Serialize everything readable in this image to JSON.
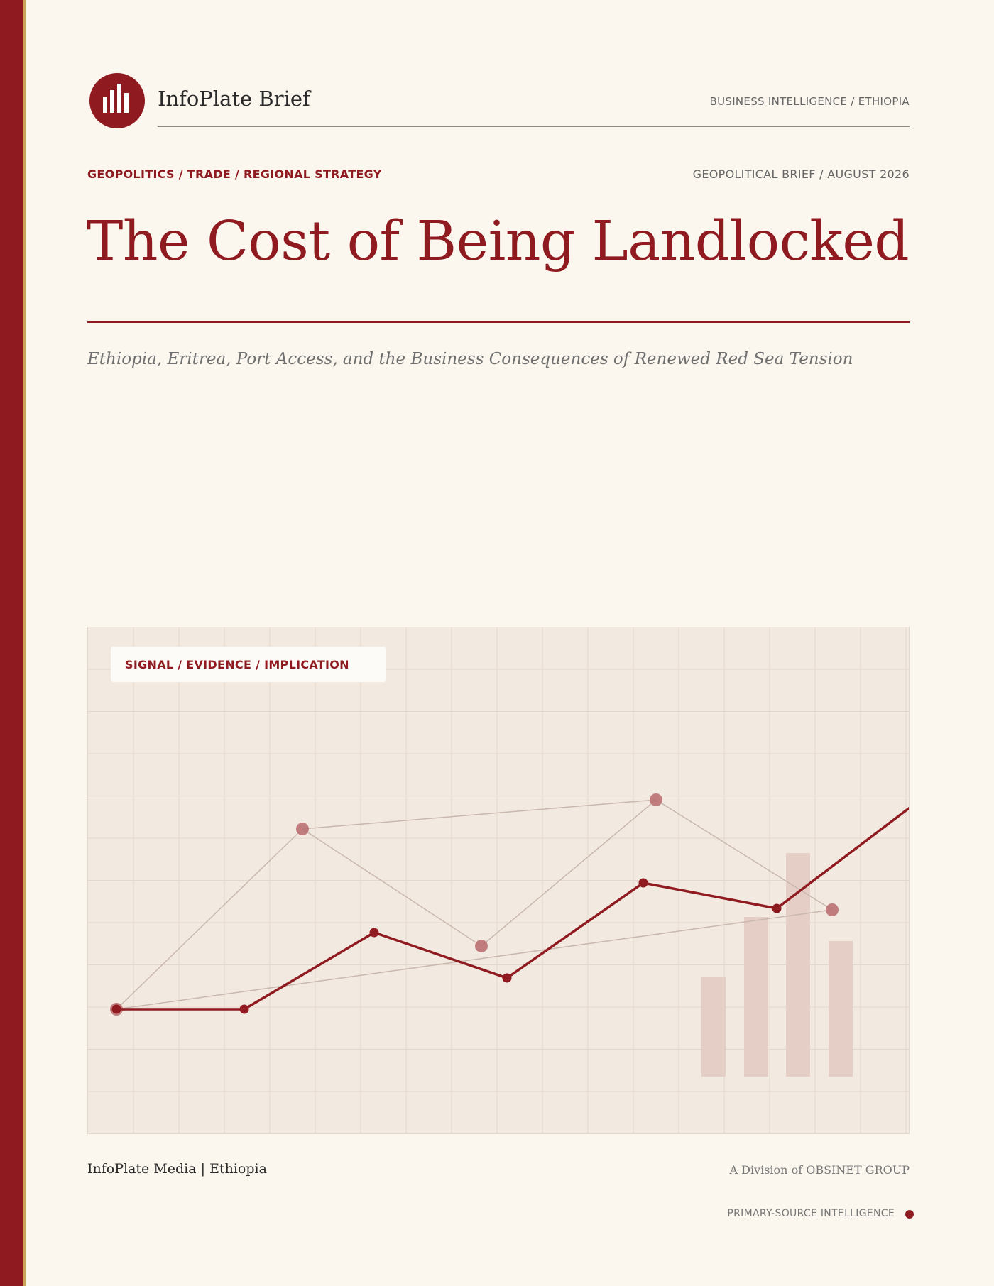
{
  "brand": {
    "name": "InfoPlate Brief",
    "section": "BUSINESS INTELLIGENCE  /  ETHIOPIA",
    "logo_icon": "bar-chart-icon"
  },
  "meta": {
    "categories": "GEOPOLITICS  /  TRADE  /  REGIONAL STRATEGY",
    "brief": "GEOPOLITICAL BRIEF  /  AUGUST 2026"
  },
  "title": "The Cost of Being Landlocked",
  "subtitle": "Ethiopia, Eritrea, Port Access, and the Business Consequences of Renewed Red Sea Tension",
  "panel": {
    "badge": "SIGNAL  /  EVIDENCE  /  IMPLICATION"
  },
  "footer": {
    "left": "InfoPlate Media  |  Ethiopia",
    "right": "A Division of OBSINET GROUP",
    "tag": "PRIMARY-SOURCE INTELLIGENCE"
  },
  "colors": {
    "accent": "#8f1a20",
    "gold": "#c9a45a",
    "background": "#fbf7ef",
    "panel": "#f2e9e1"
  }
}
